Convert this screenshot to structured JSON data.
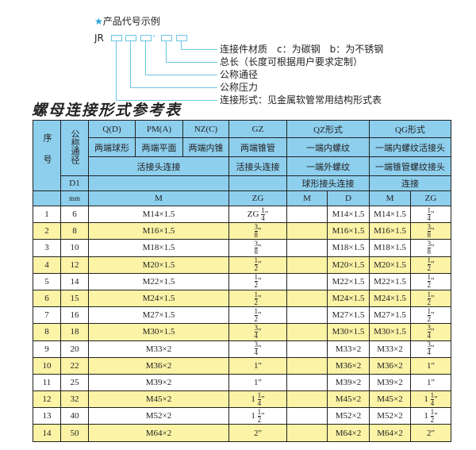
{
  "code_example": {
    "heading": "产品代号示例",
    "star_icon": "star-icon",
    "accent_color": "#6cc6e6",
    "prefix": "JR",
    "separator": "-",
    "labels": [
      "连接件材质　c：为碳钢　b：为不锈钢",
      "总长（长度可根据用户要求定制）",
      "公称通径",
      "公称压力",
      "连接形式：见金属软管常用结构形式表"
    ]
  },
  "table_title": "螺母连接形式参考表",
  "table": {
    "header_color": "#8ecfee",
    "alt_row_color": "#fbf3a6",
    "h_seq": "序号",
    "h_dn": "公称通径",
    "h_d1": "D1",
    "h_mm": "mm",
    "r1": [
      "Q(D)",
      "PM(A)",
      "NZ(C)",
      "GZ",
      "QZ形式",
      "QG形式"
    ],
    "r2": [
      "两端球形",
      "两端平面",
      "两端内锥",
      "两端锥管",
      "一端内螺纹",
      "一端内螺纹活接头"
    ],
    "r3": [
      "活接头连接",
      "活接头连接",
      "一端外螺纹",
      "一端锥管螺纹接头"
    ],
    "r4": [
      "球形接头连接",
      "连接"
    ],
    "r5": [
      "M",
      "ZG",
      "M",
      "D",
      "M",
      "ZG"
    ],
    "rows": [
      {
        "no": "1",
        "dn": "6",
        "m": "M14×1.5",
        "zg": "ZG 1/4\"",
        "qz_m": "",
        "qz_d": "M14×1.5",
        "qg_m": "M14×1.5",
        "qg_zg": "1/4\""
      },
      {
        "no": "2",
        "dn": "8",
        "m": "M16×1.5",
        "zg": "3/8\"",
        "qz_m": "",
        "qz_d": "M16×1.5",
        "qg_m": "M16×1.5",
        "qg_zg": "3/8\""
      },
      {
        "no": "3",
        "dn": "10",
        "m": "M18×1.5",
        "zg": "3/8\"",
        "qz_m": "",
        "qz_d": "M18×1.5",
        "qg_m": "M18×1.5",
        "qg_zg": "3/8\""
      },
      {
        "no": "4",
        "dn": "12",
        "m": "M20×1.5",
        "zg": "1/2\"",
        "qz_m": "",
        "qz_d": "M20×1.5",
        "qg_m": "M20×1.5",
        "qg_zg": "1/2\""
      },
      {
        "no": "5",
        "dn": "14",
        "m": "M22×1.5",
        "zg": "1/2\"",
        "qz_m": "",
        "qz_d": "M22×1.5",
        "qg_m": "M22×1.5",
        "qg_zg": "1/2\""
      },
      {
        "no": "6",
        "dn": "15",
        "m": "M24×1.5",
        "zg": "1/2\"",
        "qz_m": "",
        "qz_d": "M24×1.5",
        "qg_m": "M24×1.5",
        "qg_zg": "1/2\""
      },
      {
        "no": "7",
        "dn": "16",
        "m": "M27×1.5",
        "zg": "1/2\"",
        "qz_m": "",
        "qz_d": "M27×1.5",
        "qg_m": "M27×1.5",
        "qg_zg": "1/2\""
      },
      {
        "no": "8",
        "dn": "18",
        "m": "M30×1.5",
        "zg": "3/4\"",
        "qz_m": "",
        "qz_d": "M30×1.5",
        "qg_m": "M30×1.5",
        "qg_zg": "3/4\""
      },
      {
        "no": "9",
        "dn": "20",
        "m": "M33×2",
        "zg": "3/4\"",
        "qz_m": "",
        "qz_d": "M33×2",
        "qg_m": "M33×2",
        "qg_zg": "3/4\""
      },
      {
        "no": "10",
        "dn": "22",
        "m": "M36×2",
        "zg": "1\"",
        "qz_m": "",
        "qz_d": "M36×2",
        "qg_m": "M36×2",
        "qg_zg": "1\""
      },
      {
        "no": "11",
        "dn": "25",
        "m": "M39×2",
        "zg": "1\"",
        "qz_m": "",
        "qz_d": "M39×2",
        "qg_m": "M39×2",
        "qg_zg": "1\""
      },
      {
        "no": "12",
        "dn": "32",
        "m": "M45×2",
        "zg": "1 1/4\"",
        "qz_m": "",
        "qz_d": "M45×2",
        "qg_m": "M45×2",
        "qg_zg": "1 1/4\""
      },
      {
        "no": "13",
        "dn": "40",
        "m": "M52×2",
        "zg": "1 1/2\"",
        "qz_m": "",
        "qz_d": "M52×2",
        "qg_m": "M52×2",
        "qg_zg": "1 1/2\""
      },
      {
        "no": "14",
        "dn": "50",
        "m": "M64×2",
        "zg": "2\"",
        "qz_m": "",
        "qz_d": "M64×2",
        "qg_m": "M64×2",
        "qg_zg": "2\""
      }
    ]
  }
}
